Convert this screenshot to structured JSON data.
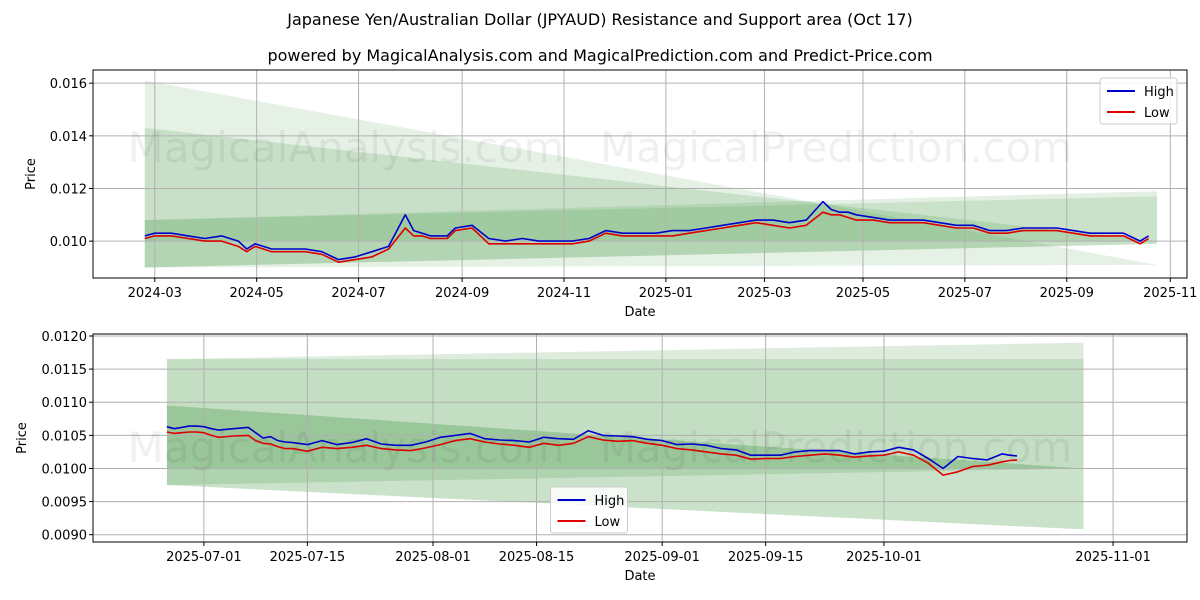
{
  "header": {
    "title": "Japanese Yen/Australian Dollar (JPYAUD) Resistance and Support area (Oct 17)",
    "subtitle": "powered by MagicalAnalysis.com and MagicalPrediction.com and Predict-Price.com"
  },
  "watermark": {
    "left": "MagicalAnalysis.com",
    "right": "MagicalPrediction.com"
  },
  "colors": {
    "high": "#0000cc",
    "low": "#dd0000",
    "band": "#2e8b2e",
    "grid": "#b0b0b0"
  },
  "chart_data": [
    {
      "type": "line",
      "name": "top-chart",
      "xlabel": "Date",
      "ylabel": "Price",
      "ylim": [
        0.0086,
        0.0165
      ],
      "xlim": [
        -37,
        618
      ],
      "yticks": [
        0.01,
        0.012,
        0.014,
        0.016
      ],
      "ytick_labels": [
        "0.010",
        "0.012",
        "0.014",
        "0.016"
      ],
      "xticks": [
        0,
        61,
        122,
        184,
        245,
        306,
        365,
        424,
        485,
        546,
        608
      ],
      "xtick_labels": [
        "2024-03",
        "2024-05",
        "2024-07",
        "2024-09",
        "2024-11",
        "2025-01",
        "2025-03",
        "2025-05",
        "2025-07",
        "2025-09",
        "2025-11"
      ],
      "x_unit": "days since 2024-03-01",
      "legend": {
        "position": "top-right",
        "entries": [
          "High",
          "Low"
        ]
      },
      "bands": [
        {
          "x": [
            -6,
            600
          ],
          "upper_start": 0.0161,
          "upper_end": 0.0091,
          "lower_start": 0.009,
          "lower_end": 0.0091,
          "opacity": 0.12
        },
        {
          "x": [
            -6,
            600
          ],
          "upper_start": 0.0143,
          "upper_end": 0.01,
          "lower_start": 0.009,
          "lower_end": 0.0099,
          "opacity": 0.16
        },
        {
          "x": [
            -6,
            600
          ],
          "upper_start": 0.0108,
          "upper_end": 0.0119,
          "lower_start": 0.009,
          "lower_end": 0.0099,
          "opacity": 0.13
        },
        {
          "x": [
            -6,
            600
          ],
          "upper_start": 0.0108,
          "upper_end": 0.0117,
          "lower_start": 0.01,
          "lower_end": 0.01,
          "opacity": 0.14
        }
      ],
      "series": [
        {
          "name": "High",
          "x": [
            -6,
            0,
            10,
            20,
            30,
            40,
            50,
            55,
            60,
            65,
            70,
            80,
            90,
            100,
            110,
            120,
            130,
            140,
            150,
            155,
            160,
            165,
            170,
            175,
            180,
            190,
            200,
            210,
            220,
            230,
            240,
            250,
            260,
            270,
            280,
            290,
            300,
            310,
            320,
            330,
            340,
            350,
            360,
            370,
            380,
            390,
            400,
            405,
            410,
            415,
            420,
            430,
            440,
            450,
            460,
            470,
            480,
            490,
            500,
            510,
            520,
            530,
            540,
            550,
            560,
            570,
            580,
            590,
            595
          ],
          "values": [
            0.0102,
            0.0103,
            0.0103,
            0.0102,
            0.0101,
            0.0102,
            0.01,
            0.0097,
            0.0099,
            0.0098,
            0.0097,
            0.0097,
            0.0097,
            0.0096,
            0.0093,
            0.0094,
            0.0096,
            0.0098,
            0.011,
            0.0104,
            0.0103,
            0.0102,
            0.0102,
            0.0102,
            0.0105,
            0.0106,
            0.0101,
            0.01,
            0.0101,
            0.01,
            0.01,
            0.01,
            0.0101,
            0.0104,
            0.0103,
            0.0103,
            0.0103,
            0.0104,
            0.0104,
            0.0105,
            0.0106,
            0.0107,
            0.0108,
            0.0108,
            0.0107,
            0.0108,
            0.0115,
            0.0112,
            0.0111,
            0.0111,
            0.011,
            0.0109,
            0.0108,
            0.0108,
            0.0108,
            0.0107,
            0.0106,
            0.0106,
            0.0104,
            0.0104,
            0.0105,
            0.0105,
            0.0105,
            0.0104,
            0.0103,
            0.0103,
            0.0103,
            0.01,
            0.0102
          ]
        },
        {
          "name": "Low",
          "x": [
            -6,
            0,
            10,
            20,
            30,
            40,
            50,
            55,
            60,
            65,
            70,
            80,
            90,
            100,
            110,
            120,
            130,
            140,
            150,
            155,
            160,
            165,
            170,
            175,
            180,
            190,
            200,
            210,
            220,
            230,
            240,
            250,
            260,
            270,
            280,
            290,
            300,
            310,
            320,
            330,
            340,
            350,
            360,
            370,
            380,
            390,
            400,
            405,
            410,
            415,
            420,
            430,
            440,
            450,
            460,
            470,
            480,
            490,
            500,
            510,
            520,
            530,
            540,
            550,
            560,
            570,
            580,
            590,
            595
          ],
          "values": [
            0.0101,
            0.0102,
            0.0102,
            0.0101,
            0.01,
            0.01,
            0.0098,
            0.0096,
            0.0098,
            0.0097,
            0.0096,
            0.0096,
            0.0096,
            0.0095,
            0.0092,
            0.0093,
            0.0094,
            0.0097,
            0.0105,
            0.0102,
            0.0102,
            0.0101,
            0.0101,
            0.0101,
            0.0104,
            0.0105,
            0.0099,
            0.0099,
            0.0099,
            0.0099,
            0.0099,
            0.0099,
            0.01,
            0.0103,
            0.0102,
            0.0102,
            0.0102,
            0.0102,
            0.0103,
            0.0104,
            0.0105,
            0.0106,
            0.0107,
            0.0106,
            0.0105,
            0.0106,
            0.0111,
            0.011,
            0.011,
            0.0109,
            0.0108,
            0.0108,
            0.0107,
            0.0107,
            0.0107,
            0.0106,
            0.0105,
            0.0105,
            0.0103,
            0.0103,
            0.0104,
            0.0104,
            0.0104,
            0.0103,
            0.0102,
            0.0102,
            0.0102,
            0.0099,
            0.0101
          ]
        }
      ]
    },
    {
      "type": "line",
      "name": "bottom-chart",
      "xlabel": "Date",
      "ylabel": "Price",
      "ylim": [
        0.00889,
        0.01203
      ],
      "xlim": [
        -15,
        133
      ],
      "yticks": [
        0.009,
        0.0095,
        0.01,
        0.0105,
        0.011,
        0.0115,
        0.012
      ],
      "ytick_labels": [
        "0.0090",
        "0.0095",
        "0.0100",
        "0.0105",
        "0.0110",
        "0.0115",
        "0.0120"
      ],
      "xticks": [
        0,
        14,
        31,
        45,
        62,
        76,
        92,
        123
      ],
      "xtick_labels": [
        "2025-07-01",
        "2025-07-15",
        "2025-08-01",
        "2025-08-15",
        "2025-09-01",
        "2025-09-15",
        "2025-10-01",
        "2025-11-01"
      ],
      "x_unit": "days since 2025-07-01",
      "legend": {
        "position": "lower-center",
        "entries": [
          "High",
          "Low"
        ]
      },
      "bands": [
        {
          "x": [
            -5,
            119
          ],
          "upper_start": 0.01165,
          "upper_end": 0.0119,
          "lower_start": 0.00975,
          "lower_end": 0.01,
          "opacity": 0.16
        },
        {
          "x": [
            -5,
            119
          ],
          "upper_start": 0.01165,
          "upper_end": 0.01165,
          "lower_start": 0.00975,
          "lower_end": 0.00908,
          "opacity": 0.14
        },
        {
          "x": [
            -5,
            119
          ],
          "upper_start": 0.01095,
          "upper_end": 0.01,
          "lower_start": 0.00975,
          "lower_end": 0.00908,
          "opacity": 0.13
        },
        {
          "x": [
            -5,
            119
          ],
          "upper_start": 0.01095,
          "upper_end": 0.01,
          "lower_start": 0.01,
          "lower_end": 0.01,
          "opacity": 0.16
        }
      ],
      "series": [
        {
          "name": "High",
          "x": [
            -5,
            -4,
            -3,
            -2,
            -1,
            0,
            1,
            2,
            4,
            6,
            7,
            8,
            9,
            10,
            11,
            12,
            14,
            16,
            18,
            20,
            22,
            24,
            26,
            28,
            30,
            32,
            34,
            36,
            38,
            40,
            42,
            44,
            46,
            48,
            50,
            52,
            54,
            56,
            58,
            60,
            62,
            64,
            66,
            68,
            70,
            72,
            74,
            76,
            78,
            80,
            82,
            84,
            86,
            88,
            90,
            92,
            94,
            96,
            98,
            100,
            102,
            104,
            106,
            108,
            109,
            110
          ],
          "values": [
            0.01063,
            0.0106,
            0.01062,
            0.01064,
            0.01064,
            0.01063,
            0.0106,
            0.01058,
            0.0106,
            0.01062,
            0.01054,
            0.01046,
            0.01048,
            0.01042,
            0.0104,
            0.01039,
            0.01036,
            0.01042,
            0.01036,
            0.01039,
            0.01045,
            0.01037,
            0.01035,
            0.01035,
            0.0104,
            0.01047,
            0.0105,
            0.01053,
            0.01045,
            0.01043,
            0.01042,
            0.0104,
            0.01047,
            0.01045,
            0.01044,
            0.01057,
            0.0105,
            0.01049,
            0.01048,
            0.01044,
            0.01042,
            0.01036,
            0.01037,
            0.01035,
            0.0103,
            0.01028,
            0.0102,
            0.0102,
            0.0102,
            0.01025,
            0.01027,
            0.01027,
            0.01027,
            0.01022,
            0.01025,
            0.01026,
            0.01032,
            0.01028,
            0.01015,
            0.01,
            0.01018,
            0.01015,
            0.01013,
            0.01022,
            0.0102,
            0.01019
          ]
        },
        {
          "name": "Low",
          "x": [
            -5,
            -4,
            -3,
            -2,
            -1,
            0,
            1,
            2,
            4,
            6,
            7,
            8,
            9,
            10,
            11,
            12,
            14,
            16,
            18,
            20,
            22,
            24,
            26,
            28,
            30,
            32,
            34,
            36,
            38,
            40,
            42,
            44,
            46,
            48,
            50,
            52,
            54,
            56,
            58,
            60,
            62,
            64,
            66,
            68,
            70,
            72,
            74,
            76,
            78,
            80,
            82,
            84,
            86,
            88,
            90,
            92,
            94,
            96,
            98,
            100,
            102,
            104,
            106,
            108,
            109,
            110
          ],
          "values": [
            0.01055,
            0.01053,
            0.01054,
            0.01055,
            0.01055,
            0.01054,
            0.0105,
            0.01047,
            0.01049,
            0.0105,
            0.01042,
            0.01038,
            0.01037,
            0.01033,
            0.0103,
            0.0103,
            0.01026,
            0.01032,
            0.0103,
            0.01032,
            0.01035,
            0.0103,
            0.01028,
            0.01027,
            0.01031,
            0.01036,
            0.01042,
            0.01045,
            0.0104,
            0.01037,
            0.01035,
            0.01032,
            0.01038,
            0.01035,
            0.01038,
            0.01048,
            0.01043,
            0.01041,
            0.01042,
            0.01038,
            0.01035,
            0.0103,
            0.01028,
            0.01025,
            0.01022,
            0.0102,
            0.01014,
            0.01015,
            0.01015,
            0.01018,
            0.0102,
            0.01022,
            0.0102,
            0.01017,
            0.01019,
            0.0102,
            0.01025,
            0.0102,
            0.01008,
            0.0099,
            0.00995,
            0.01003,
            0.01005,
            0.0101,
            0.01012,
            0.01013
          ]
        }
      ]
    }
  ]
}
